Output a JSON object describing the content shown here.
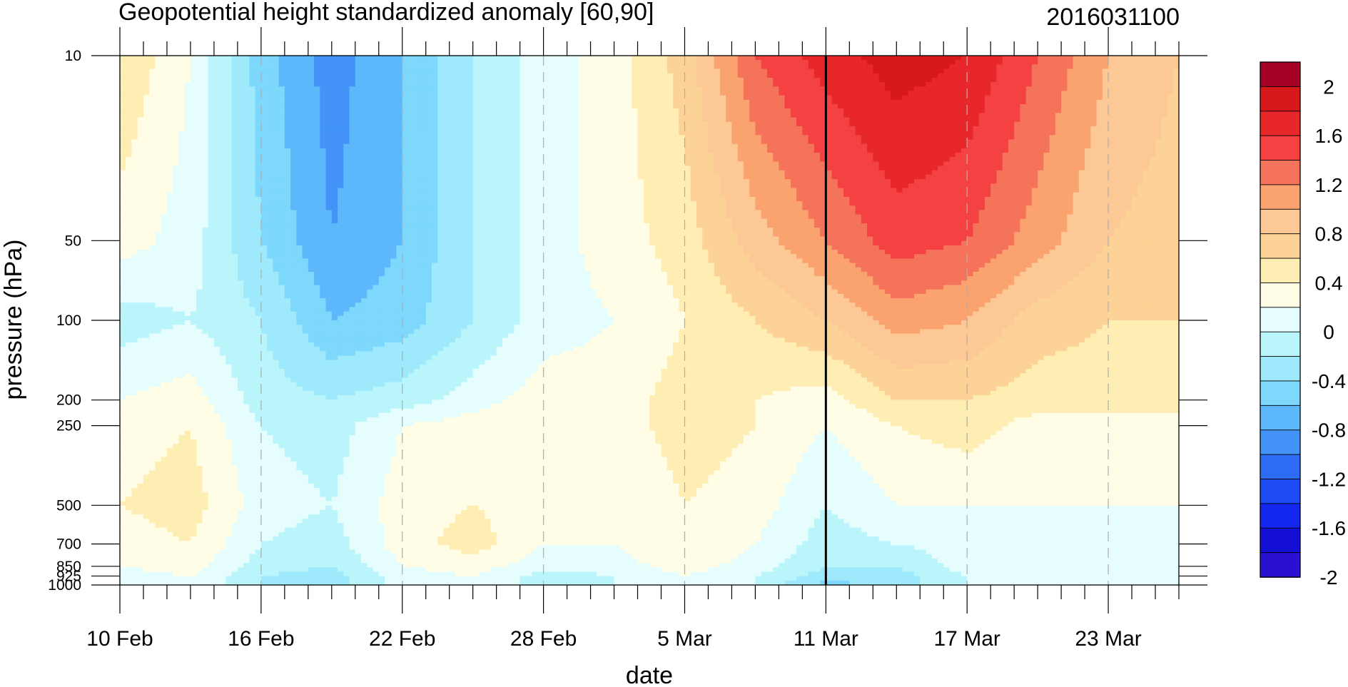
{
  "chart_data": {
    "type": "heatmap",
    "title": "Geopotential height standardized anomaly [60,90]",
    "subtitle": "2016031100",
    "xlabel": "date",
    "ylabel": "pressure (hPa)",
    "x_ticks": [
      "10 Feb",
      "16 Feb",
      "22 Feb",
      "28 Feb",
      "5 Mar",
      "11 Mar",
      "17 Mar",
      "23 Mar"
    ],
    "x_tick_days": [
      0,
      6,
      12,
      18,
      24,
      30,
      36,
      42
    ],
    "x_range_days": [
      0,
      45
    ],
    "current_date_day": 30,
    "y_ticks": [
      "10",
      "50",
      "100",
      "200",
      "250",
      "500",
      "700",
      "850",
      "925",
      "1000"
    ],
    "y_tick_values": [
      10,
      50,
      100,
      200,
      250,
      500,
      700,
      850,
      925,
      1000
    ],
    "y_range": [
      1000,
      10
    ],
    "y_scale": "log",
    "colorbar": {
      "labels": [
        "2",
        "1.6",
        "1.2",
        "0.8",
        "0.4",
        "0",
        "-0.4",
        "-0.8",
        "-1.2",
        "-1.6",
        "-2"
      ],
      "levels": [
        2,
        1.8,
        1.6,
        1.4,
        1.2,
        1.0,
        0.8,
        0.6,
        0.4,
        0.2,
        0,
        -0.2,
        -0.4,
        -0.6,
        -0.8,
        -1.0,
        -1.2,
        -1.4,
        -1.6,
        -1.8,
        -2
      ],
      "colors": [
        "#a50026",
        "#d7191c",
        "#e8272b",
        "#f44141",
        "#f5735a",
        "#fba36f",
        "#fcc996",
        "#fdd296",
        "#feeeb4",
        "#fffde6",
        "#e5fdfd",
        "#baf5fb",
        "#9ee9fb",
        "#7dd8fb",
        "#5cb8fa",
        "#4393f8",
        "#2e6cf6",
        "#1e4cf4",
        "#1427ee",
        "#130fd4",
        "#2a10d0"
      ]
    },
    "pressure_levels": [
      10,
      50,
      100,
      200,
      250,
      500,
      700,
      850,
      925,
      1000
    ],
    "day_grid": [
      0,
      3,
      6,
      9,
      12,
      15,
      18,
      21,
      24,
      27,
      30,
      33,
      36,
      39,
      42,
      45
    ],
    "series": [
      {
        "values": [
          0.6,
          0.2,
          -0.5,
          -0.9,
          -0.6,
          -0.2,
          0.1,
          0.3,
          0.7,
          1.4,
          1.7,
          1.9,
          1.8,
          1.4,
          1.0,
          0.8
        ]
      },
      {
        "values": [
          0.3,
          0.1,
          -0.4,
          -0.8,
          -0.6,
          -0.2,
          0.1,
          0.3,
          0.5,
          0.9,
          1.2,
          1.5,
          1.4,
          1.1,
          0.8,
          0.7
        ]
      },
      {
        "values": [
          -0.1,
          0.0,
          -0.2,
          -0.6,
          -0.5,
          -0.2,
          0.1,
          0.2,
          0.4,
          0.6,
          0.8,
          1.1,
          1.0,
          0.7,
          0.6,
          0.6
        ]
      },
      {
        "values": [
          0.2,
          0.3,
          -0.1,
          -0.2,
          -0.1,
          0.1,
          0.3,
          0.3,
          0.5,
          0.4,
          0.3,
          0.6,
          0.6,
          0.5,
          0.5,
          0.5
        ]
      },
      {
        "values": [
          0.3,
          0.4,
          0.0,
          -0.1,
          0.2,
          0.3,
          0.4,
          0.3,
          0.5,
          0.4,
          0.2,
          0.4,
          0.5,
          0.3,
          0.3,
          0.3
        ]
      },
      {
        "values": [
          0.4,
          0.5,
          0.1,
          0.0,
          0.3,
          0.4,
          0.3,
          0.2,
          0.4,
          0.3,
          0.0,
          0.2,
          0.2,
          0.2,
          0.2,
          0.2
        ]
      },
      {
        "values": [
          0.3,
          0.4,
          0.0,
          -0.1,
          0.3,
          0.5,
          0.2,
          0.2,
          0.4,
          0.2,
          -0.1,
          0.0,
          0.1,
          0.1,
          0.1,
          0.1
        ]
      },
      {
        "values": [
          0.2,
          0.3,
          -0.1,
          -0.2,
          0.2,
          0.3,
          0.1,
          0.1,
          0.3,
          0.1,
          -0.2,
          -0.2,
          0.1,
          0.1,
          0.1,
          0.1
        ]
      },
      {
        "values": [
          0.1,
          0.2,
          -0.2,
          -0.3,
          0.1,
          0.2,
          -0.1,
          0.0,
          0.2,
          0.0,
          -0.3,
          -0.3,
          0.0,
          0.1,
          0.1,
          0.2
        ]
      },
      {
        "values": [
          0.1,
          0.2,
          -0.2,
          -0.3,
          0.1,
          0.2,
          -0.1,
          0.0,
          0.2,
          0.0,
          -0.5,
          -0.3,
          0.0,
          0.1,
          0.1,
          0.2
        ]
      }
    ]
  }
}
